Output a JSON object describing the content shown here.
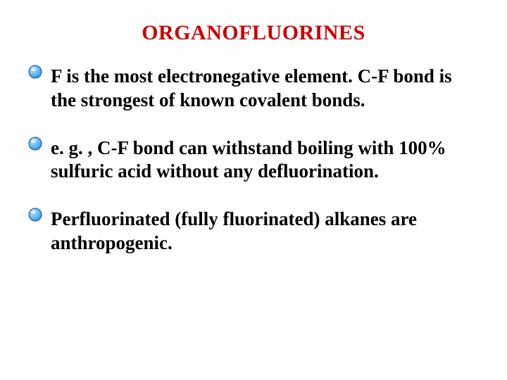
{
  "slide": {
    "title": "ORGANOFLUORINES",
    "title_color": "#cc0000",
    "title_fontsize": 30,
    "body_fontsize": 27,
    "body_color": "#000000",
    "background_color": "#ffffff",
    "bullet": {
      "fill_top": "#b8e4ff",
      "fill_bottom": "#3a9eea",
      "stroke": "#0a4b8a",
      "diameter": 20
    },
    "items": [
      "F is the most electronegative element. C-F bond is the strongest of known covalent bonds.",
      "e. g. , C-F bond can withstand boiling with 100% sulfuric acid without any defluorination.",
      "Perfluorinated (fully fluorinated) alkanes are anthropogenic."
    ]
  }
}
